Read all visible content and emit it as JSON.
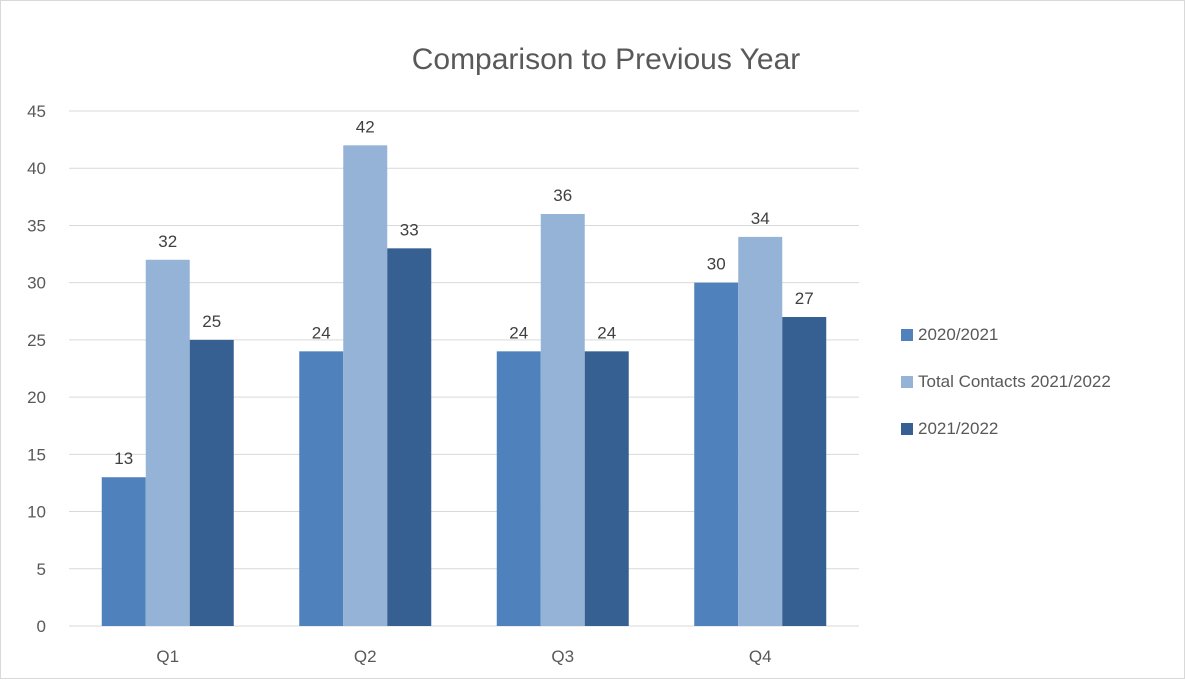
{
  "chart_data": {
    "type": "bar",
    "title": "Comparison to Previous Year",
    "xlabel": "",
    "ylabel": "",
    "categories": [
      "Q1",
      "Q2",
      "Q3",
      "Q4"
    ],
    "series": [
      {
        "name": "2020/2021",
        "values": [
          13,
          24,
          24,
          30
        ],
        "color": "#4f81bd"
      },
      {
        "name": "Total Contacts 2021/2022",
        "values": [
          32,
          42,
          36,
          34
        ],
        "color": "#95b3d7"
      },
      {
        "name": "2021/2022",
        "values": [
          25,
          33,
          24,
          27
        ],
        "color": "#366092"
      }
    ],
    "ylim": [
      0,
      45
    ],
    "yticks": [
      0,
      5,
      10,
      15,
      20,
      25,
      30,
      35,
      40,
      45
    ],
    "grid": true,
    "legend_position": "right",
    "data_labels": true,
    "gridline_color": "#d9d9d9",
    "axis_color": "#d9d9d9"
  }
}
